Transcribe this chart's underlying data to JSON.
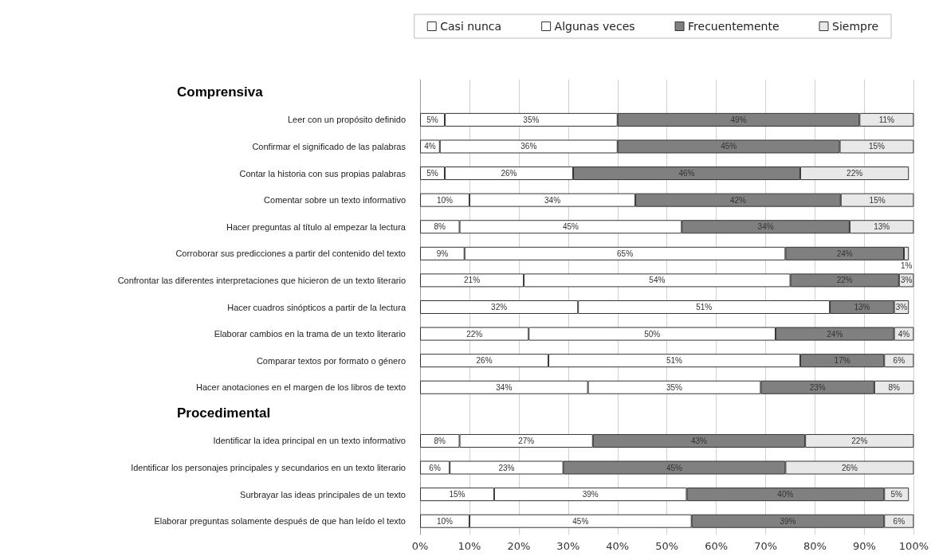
{
  "chart_data": {
    "type": "bar",
    "orientation": "horizontal",
    "stacked": true,
    "annotations": [
      "Comprensiva",
      "Procedimental"
    ],
    "categories": [
      null,
      "Leer con un propósito definido",
      "Confirmar el significado de las palabras",
      "Contar la historia con sus propias palabras",
      "Comentar sobre un texto informativo",
      "Hacer preguntas al título al empezar la lectura",
      "Corroborar sus predicciones a partir del contenido del texto",
      "Confrontar las diferentes interpretaciones que hicieron de un texto literario",
      "Hacer cuadros sinópticos a partir de la lectura",
      "Elaborar cambios en la trama de un texto literario",
      "Comparar textos por formato o género",
      "Hacer anotaciones en el margen de los libros de texto",
      null,
      "Identificar la idea principal en un texto informativo",
      "Identificar los personajes principales y secundarios en un texto literario",
      "Surbrayar las ideas principales de un texto",
      "Elaborar preguntas solamente después de que han leído el texto"
    ],
    "series": [
      {
        "name": "Casi nunca",
        "color": "#ffffff",
        "values": [
          null,
          5,
          4,
          5,
          10,
          8,
          9,
          21,
          32,
          22,
          26,
          34,
          null,
          8,
          6,
          15,
          10
        ],
        "value_labels": [
          null,
          "5%",
          "4%",
          "5%",
          "10%",
          "8%",
          "9%",
          "21%",
          "32%",
          "22%",
          "26%",
          "34%",
          null,
          "8%",
          "6%",
          "15%",
          "10%"
        ]
      },
      {
        "name": "Algunas veces",
        "color": "#ffffff",
        "values": [
          null,
          35,
          36,
          26,
          33.6,
          45,
          65,
          54,
          51,
          50,
          51,
          35,
          null,
          27,
          23,
          39,
          45
        ],
        "value_labels": [
          null,
          "35%",
          "36%",
          "26%",
          "34%",
          "45%",
          "65%",
          "54%",
          "51%",
          "50%",
          "51%",
          "35%",
          null,
          "27%",
          "23%",
          "39%",
          "45%"
        ]
      },
      {
        "name": "Frecuentemente",
        "color": "#808080",
        "values": [
          null,
          49,
          45,
          46,
          41.6,
          34,
          24,
          22,
          13,
          24,
          17,
          23,
          null,
          43,
          45,
          40,
          39
        ],
        "value_labels": [
          null,
          "49%",
          "45%",
          "46%",
          "42%",
          "34%",
          "24%",
          "22%",
          "13%",
          "24%",
          "17%",
          "23%",
          null,
          "43%",
          "45%",
          "40%",
          "39%"
        ]
      },
      {
        "name": "Siempre",
        "color": "#e8e8e8",
        "values": [
          null,
          11,
          15,
          22,
          14.8,
          13,
          1,
          3,
          3,
          4,
          6,
          8,
          null,
          22,
          26,
          5,
          6
        ],
        "value_labels": [
          null,
          "11%",
          "15%",
          "22%",
          "15%",
          "13%",
          "1%",
          "3%",
          "3%",
          "4%",
          "6%",
          "8%",
          null,
          "22%",
          "26%",
          "5%",
          "6%"
        ]
      }
    ],
    "xlim": [
      0,
      100
    ],
    "xticks": [
      {
        "value": 0,
        "label": "0%"
      },
      {
        "value": 10,
        "label": "10%"
      },
      {
        "value": 20,
        "label": "20%"
      },
      {
        "value": 30,
        "label": "30%"
      },
      {
        "value": 40,
        "label": "40%"
      },
      {
        "value": 50,
        "label": "50%"
      },
      {
        "value": 60,
        "label": "60%"
      },
      {
        "value": 70,
        "label": "70%"
      },
      {
        "value": 80,
        "label": "80%"
      },
      {
        "value": 90,
        "label": "90%"
      },
      {
        "value": 100,
        "label": "100%"
      }
    ],
    "grid": "x",
    "legend": "top right"
  }
}
